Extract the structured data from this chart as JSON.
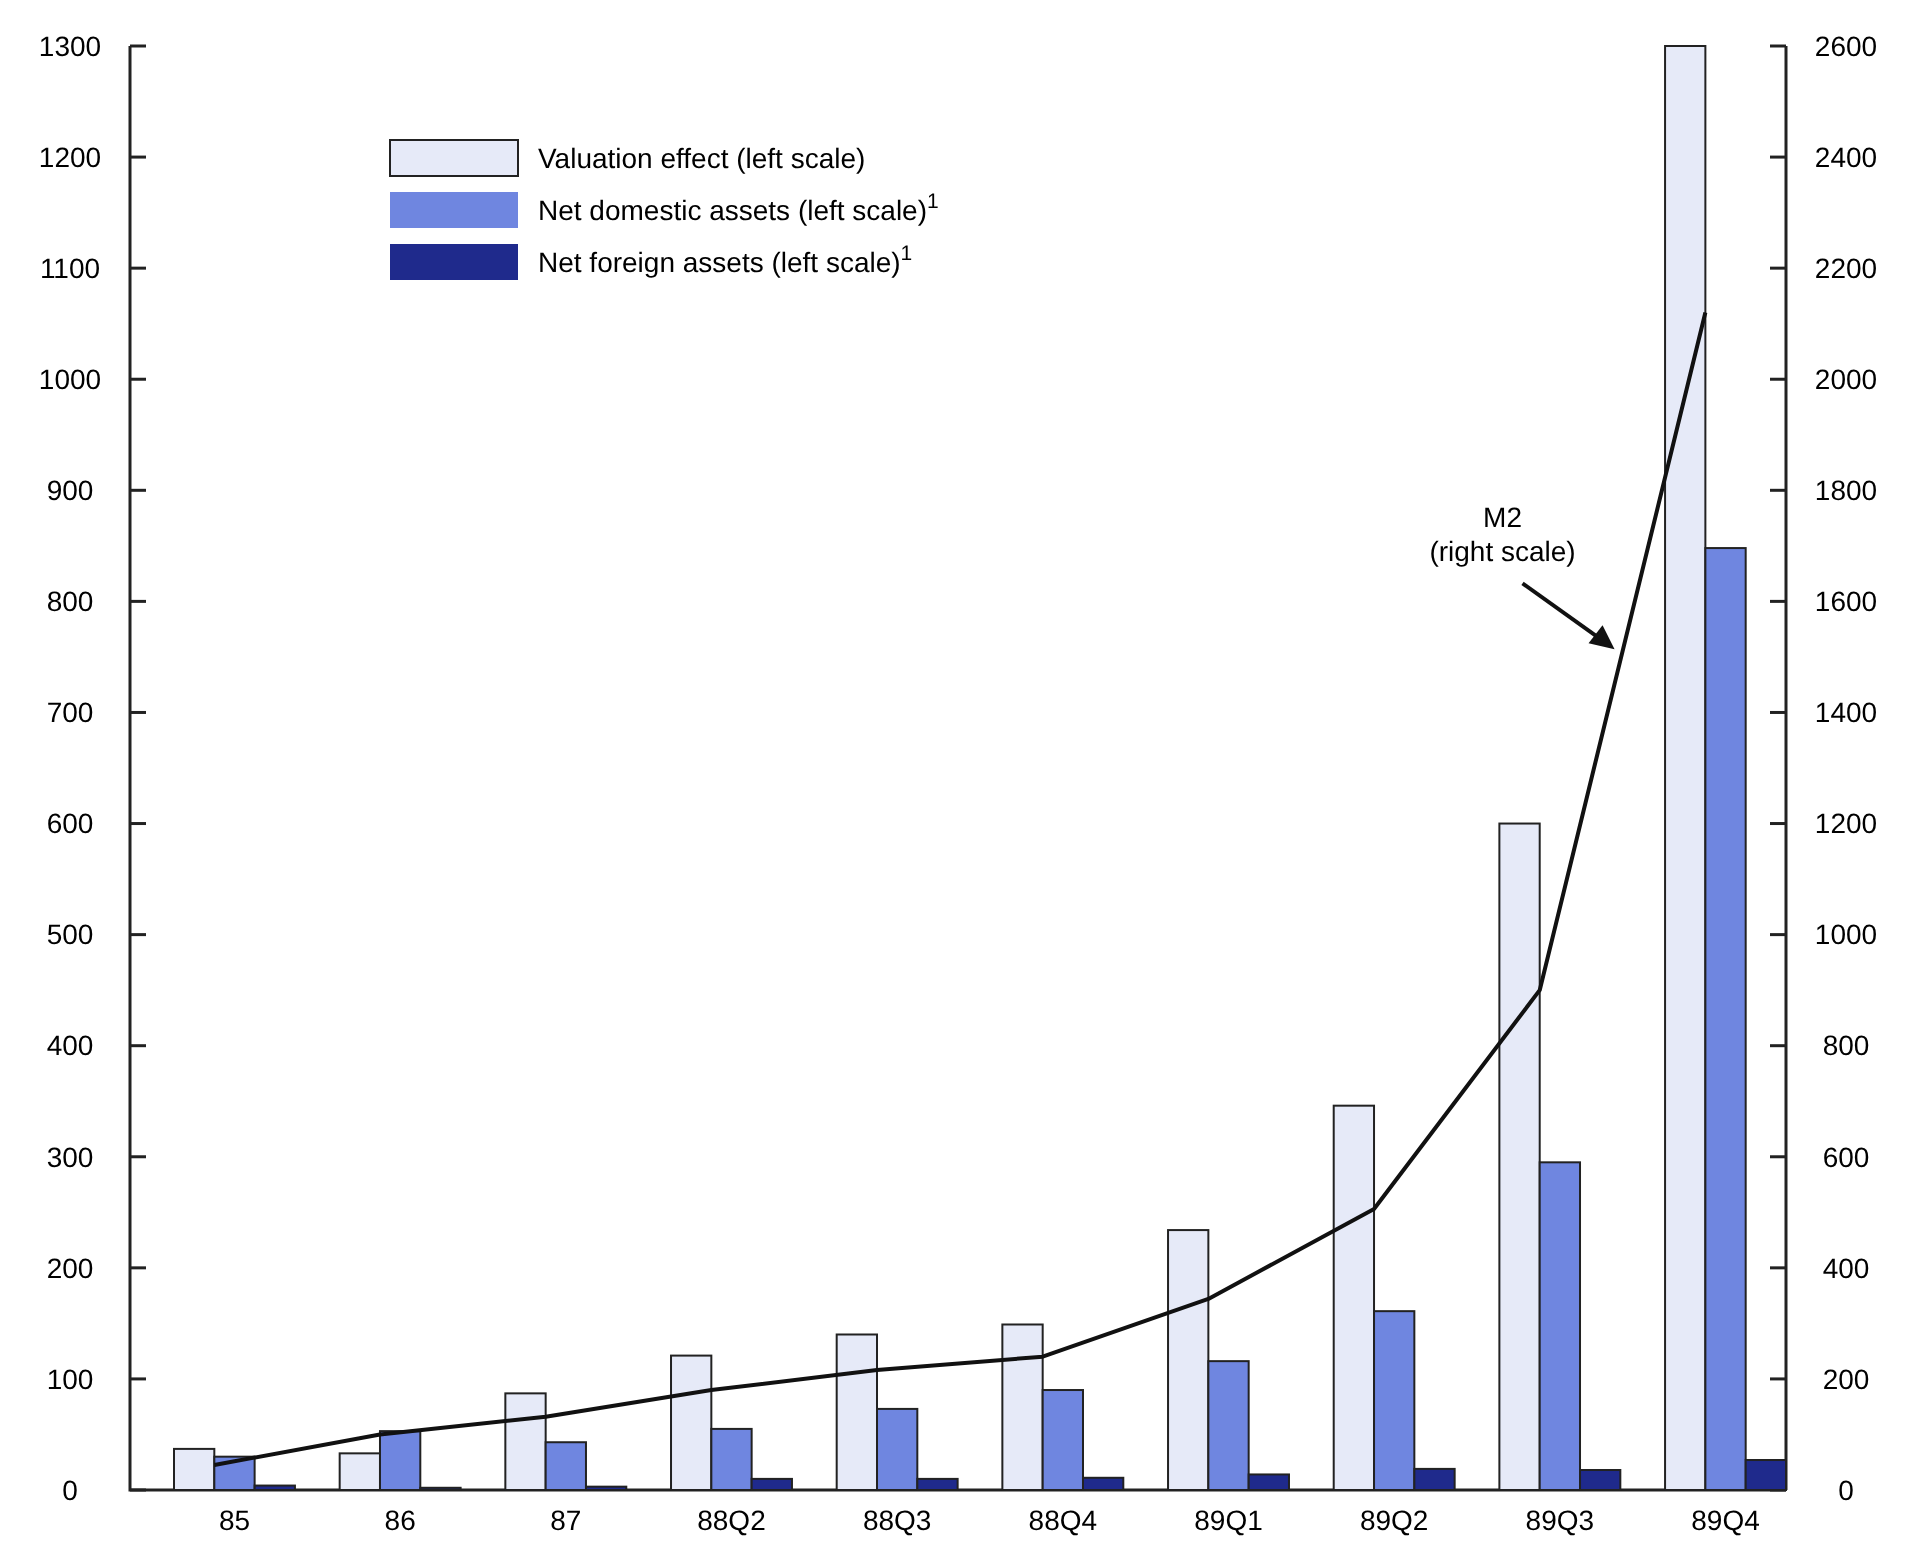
{
  "chart_data": {
    "type": "bar",
    "categories": [
      "85",
      "86",
      "87",
      "88Q2",
      "88Q3",
      "88Q4",
      "89Q1",
      "89Q2",
      "89Q3",
      "89Q4"
    ],
    "series": [
      {
        "name": "Valuation effect (left scale)",
        "color": "#e6eaf8",
        "values": [
          37,
          33,
          87,
          121,
          140,
          149,
          234,
          346,
          600,
          1300
        ]
      },
      {
        "name": "Net domestic assets (left scale)$^{1}$",
        "color": "#6f86e0",
        "values": [
          30,
          53,
          43,
          55,
          73,
          90,
          116,
          161,
          295,
          848
        ]
      },
      {
        "name": "Net foreign assets (left scale)$^{1}$",
        "color": "#1f2a8c",
        "values": [
          4,
          2,
          3,
          10,
          10,
          11,
          14,
          19,
          18,
          27
        ]
      },
      {
        "name": "M2 (right scale)",
        "type": "line",
        "axis": "y2",
        "color": "#111111",
        "values": [
          45,
          100,
          132,
          180,
          216,
          240,
          344,
          506,
          900,
          2120
        ]
      }
    ],
    "ylim": [
      0,
      1300
    ],
    "yticks": [
      0,
      100,
      200,
      300,
      400,
      500,
      600,
      700,
      800,
      900,
      1000,
      1100,
      1200,
      1300
    ],
    "y2lim": [
      0,
      2600
    ],
    "y2ticks": [
      0,
      200,
      400,
      600,
      800,
      1000,
      1200,
      1400,
      1600,
      1800,
      2000,
      2200,
      2400,
      2600
    ],
    "legend": "top left",
    "grid": false,
    "marker": "none",
    "line_style": "solid"
  }
}
